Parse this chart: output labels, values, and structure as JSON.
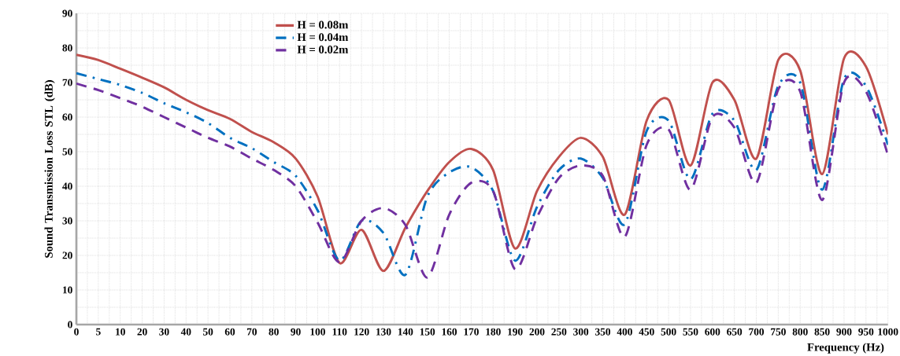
{
  "chart_data": {
    "type": "line",
    "xlabel": "Frequency (Hz)",
    "ylabel": "Sound Transmission Loss STL (dB)",
    "categories": [
      "0",
      "5",
      "10",
      "20",
      "30",
      "40",
      "50",
      "60",
      "70",
      "80",
      "90",
      "100",
      "110",
      "120",
      "130",
      "140",
      "150",
      "160",
      "170",
      "180",
      "190",
      "200",
      "250",
      "300",
      "350",
      "400",
      "450",
      "500",
      "550",
      "600",
      "650",
      "700",
      "750",
      "800",
      "850",
      "900",
      "950",
      "1000"
    ],
    "ylim": [
      0,
      90
    ],
    "yticks": [
      0,
      10,
      20,
      30,
      40,
      50,
      60,
      70,
      80,
      90
    ],
    "grid": true,
    "legend": "top left",
    "series": [
      {
        "name": "H = 0.08m",
        "color": "#c0504d",
        "line_style": "solid",
        "values": [
          78,
          76.5,
          74,
          71.4,
          68.6,
          65,
          62,
          59.5,
          55.7,
          52.7,
          48,
          37,
          17.8,
          27.4,
          15.5,
          28,
          38.6,
          47,
          50.8,
          44.7,
          22,
          38.6,
          48.5,
          54,
          48.5,
          31.8,
          59,
          65,
          46,
          70,
          65,
          48,
          76.5,
          73.5,
          43.5,
          77,
          74.6,
          55
        ]
      },
      {
        "name": "H = 0.04m",
        "color": "#0070c0",
        "line_style": "dashdot",
        "values": [
          72.7,
          71,
          69.3,
          67,
          64,
          61.4,
          58.3,
          54,
          51,
          47,
          43,
          33,
          18.5,
          30,
          26.5,
          14.4,
          37,
          44,
          45.5,
          38.6,
          18.5,
          34,
          44.7,
          48,
          42.4,
          29,
          56,
          59,
          42,
          61,
          59,
          44.7,
          69,
          70,
          39,
          71,
          69,
          52
        ]
      },
      {
        "name": "H = 0.02m",
        "color": "#7030a0",
        "line_style": "dashed",
        "values": [
          69.7,
          67.8,
          65.5,
          63,
          60,
          57,
          54,
          51.5,
          48,
          44.7,
          40,
          29.5,
          18,
          30,
          33.7,
          28.8,
          13.6,
          31.8,
          41,
          38.6,
          16,
          31,
          42.4,
          46,
          43,
          25.4,
          52,
          56.4,
          39,
          60,
          57,
          41,
          68,
          67.4,
          36,
          70,
          67.4,
          49
        ]
      }
    ]
  }
}
